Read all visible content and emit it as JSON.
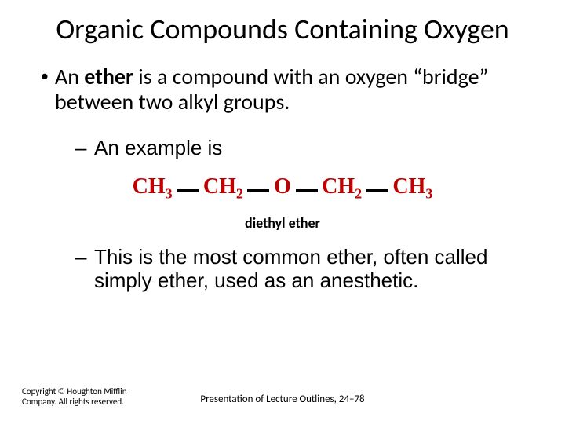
{
  "title": "Organic Compounds Containing Oxygen",
  "bullets": {
    "b1_pre": "An ",
    "b1_bold": "ether",
    "b1_post": " is a compound with an oxygen “bridge” between two alkyl groups.",
    "b2a": "An example is",
    "b2b": "This is the most common ether, often called simply ether, used as an anesthetic."
  },
  "formula": {
    "groups": [
      "CH",
      "CH",
      "O",
      "CH",
      "CH"
    ],
    "subs": [
      "3",
      "2",
      "",
      "2",
      "3"
    ],
    "color": "#c00000",
    "bond_color": "#000000",
    "caption": "diethyl ether"
  },
  "footer": {
    "copyright_l1": "Copyright © Houghton Mifflin",
    "copyright_l2": "Company. All rights reserved.",
    "center": "Presentation of Lecture Outlines, 24–78"
  },
  "colors": {
    "text": "#000000",
    "background": "#ffffff"
  },
  "fonts": {
    "title_size_pt": 36,
    "body_size_pt": 28,
    "sub_size_pt": 26,
    "caption_size_pt": 18,
    "footer_size_pt": 11
  }
}
